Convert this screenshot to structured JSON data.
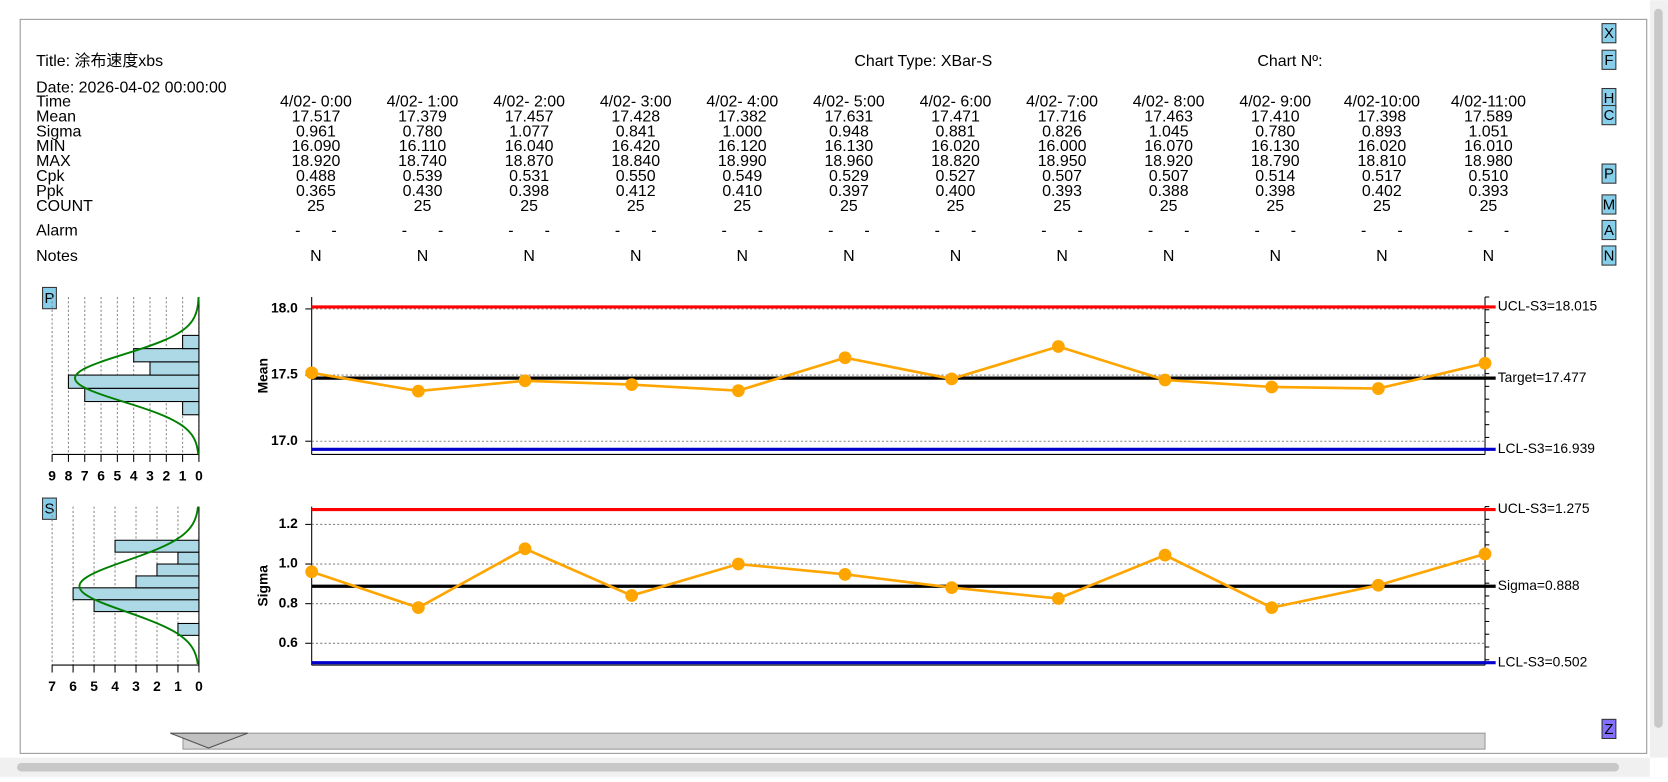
{
  "header": {
    "title": "Title: 涂布速度xbs",
    "date": "Date: 2026-04-02 00:00:00",
    "chart_type": "Chart Type: XBar-S",
    "chart_no": "Chart Nº:"
  },
  "buttons": [
    "X",
    "F",
    "H",
    "C",
    "P",
    "M",
    "A",
    "N",
    "Z"
  ],
  "side_buttons": [
    "P",
    "S"
  ],
  "table": {
    "row_labels": [
      "Time",
      "Mean",
      "Sigma",
      "MIN",
      "MAX",
      "Cpk",
      "Ppk",
      "COUNT",
      "Alarm",
      "Notes"
    ],
    "rows": [
      [
        "4/02- 0:00",
        "4/02- 1:00",
        "4/02- 2:00",
        "4/02- 3:00",
        "4/02- 4:00",
        "4/02- 5:00",
        "4/02- 6:00",
        "4/02- 7:00",
        "4/02- 8:00",
        "4/02- 9:00",
        "4/02-10:00",
        "4/02-11:00"
      ],
      [
        "17.517",
        "17.379",
        "17.457",
        "17.428",
        "17.382",
        "17.631",
        "17.471",
        "17.716",
        "17.463",
        "17.410",
        "17.398",
        "17.589"
      ],
      [
        "0.961",
        "0.780",
        "1.077",
        "0.841",
        "1.000",
        "0.948",
        "0.881",
        "0.826",
        "1.045",
        "0.780",
        "0.893",
        "1.051"
      ],
      [
        "16.090",
        "16.110",
        "16.040",
        "16.420",
        "16.120",
        "16.130",
        "16.020",
        "16.000",
        "16.070",
        "16.130",
        "16.020",
        "16.010"
      ],
      [
        "18.920",
        "18.740",
        "18.870",
        "18.840",
        "18.990",
        "18.960",
        "18.820",
        "18.950",
        "18.920",
        "18.790",
        "18.810",
        "18.980"
      ],
      [
        "0.488",
        "0.539",
        "0.531",
        "0.550",
        "0.549",
        "0.529",
        "0.527",
        "0.507",
        "0.507",
        "0.514",
        "0.517",
        "0.510"
      ],
      [
        "0.365",
        "0.430",
        "0.398",
        "0.412",
        "0.410",
        "0.397",
        "0.400",
        "0.393",
        "0.388",
        "0.398",
        "0.402",
        "0.393"
      ],
      [
        "25",
        "25",
        "25",
        "25",
        "25",
        "25",
        "25",
        "25",
        "25",
        "25",
        "25",
        "25"
      ],
      [
        "-       -",
        "-       -",
        "-       -",
        "-       -",
        "-       -",
        "-       -",
        "-       -",
        "-       -",
        "-       -",
        "-       -",
        "-       -",
        "-       -"
      ],
      [
        "N",
        "N",
        "N",
        "N",
        "N",
        "N",
        "N",
        "N",
        "N",
        "N",
        "N",
        "N"
      ]
    ]
  },
  "chart_data": [
    {
      "type": "line",
      "y_label": "Mean",
      "ylim": [
        16.9,
        18.09
      ],
      "yticks": [
        {
          "value": 18,
          "label": "18.0"
        },
        {
          "value": 17.5,
          "label": "17.5"
        },
        {
          "value": 17,
          "label": "17.0"
        }
      ],
      "grid": true,
      "series": [
        {
          "color": "#ffa500",
          "values": [
            17.517,
            17.379,
            17.457,
            17.428,
            17.382,
            17.631,
            17.471,
            17.716,
            17.463,
            17.41,
            17.398,
            17.589
          ]
        }
      ],
      "control_lines": [
        {
          "label": "UCL-S3=18.015",
          "value": 18.015,
          "color": "#ff0000"
        },
        {
          "label": "Target=17.477",
          "value": 17.477,
          "color": "#000000"
        },
        {
          "label": "LCL-S3=16.939",
          "value": 16.939,
          "color": "#0000cc"
        }
      ],
      "histogram": {
        "type": "histogram",
        "bins": [
          17.2,
          17.3,
          17.4,
          17.5,
          17.6,
          17.7,
          17.8
        ],
        "counts": [
          1,
          7,
          8,
          3,
          4,
          1
        ],
        "xlim": [
          9,
          0
        ],
        "xticks": [
          9,
          8,
          7,
          6,
          5,
          4,
          3,
          2,
          1,
          0
        ],
        "color": "#add8e6",
        "curve_color": "#008000"
      }
    },
    {
      "type": "line",
      "y_label": "Sigma",
      "ylim": [
        0.49,
        1.29
      ],
      "yticks": [
        {
          "value": 1.2,
          "label": "1.2"
        },
        {
          "value": 1,
          "label": "1.0"
        },
        {
          "value": 0.8,
          "label": "0.8"
        },
        {
          "value": 0.6,
          "label": "0.6"
        }
      ],
      "grid": true,
      "series": [
        {
          "color": "#ffa500",
          "values": [
            0.961,
            0.78,
            1.077,
            0.841,
            1,
            0.948,
            0.881,
            0.826,
            1.045,
            0.78,
            0.893,
            1.051
          ]
        }
      ],
      "control_lines": [
        {
          "label": "UCL-S3=1.275",
          "value": 1.275,
          "color": "#ff0000"
        },
        {
          "label": "Sigma=0.888",
          "value": 0.888,
          "color": "#000000"
        },
        {
          "label": "LCL-S3=0.502",
          "value": 0.502,
          "color": "#0000cc"
        }
      ],
      "histogram": {
        "type": "histogram",
        "bins": [
          0.64,
          0.7,
          0.76,
          0.82,
          0.88,
          0.94,
          1.0,
          1.06,
          1.12
        ],
        "counts": [
          1,
          0,
          5,
          6,
          3,
          2,
          1,
          4
        ],
        "xlim": [
          7,
          0
        ],
        "xticks": [
          7,
          6,
          5,
          4,
          3,
          2,
          1,
          0
        ],
        "color": "#add8e6",
        "curve_color": "#008000"
      }
    }
  ]
}
